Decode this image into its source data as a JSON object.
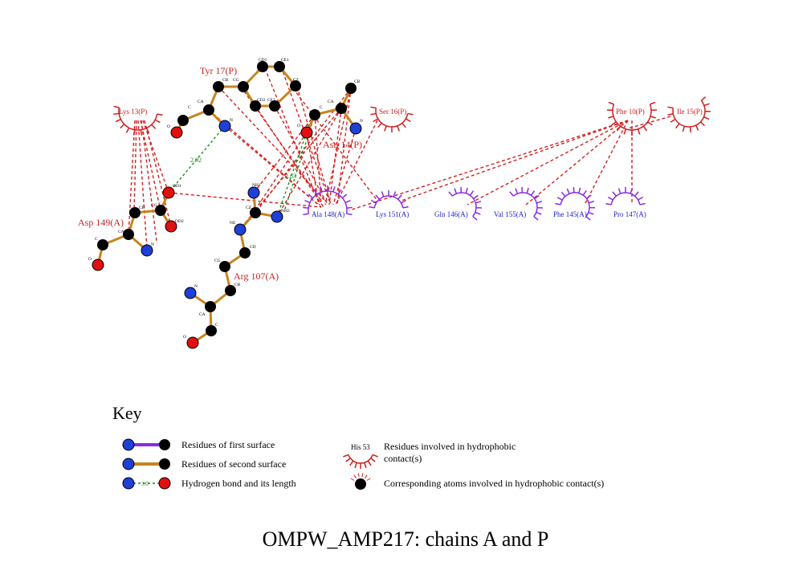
{
  "residues": {
    "tyr17": "Tyr 17(P)",
    "lys13": "Lys 13(P)",
    "ser16": "Ser 16(P)",
    "asn14": "Asn 14(P)",
    "phe10": "Phe 10(P)",
    "ile15": "Ile 15(P)",
    "asp149": "Asp 149(A)",
    "arg107": "Arg 107(A)",
    "ala148": "Ala 148(A)",
    "lys151": "Lys 151(A)",
    "gln146": "Gln 146(A)",
    "val155": "Val 155(A)",
    "phe145": "Phe 145(A)",
    "pro147": "Pro 147(A)"
  },
  "atoms": {
    "tyr_cd1": "CD1",
    "tyr_ce1": "CE1",
    "tyr_cb": "CB",
    "tyr_cg": "CG",
    "tyr_cz": "CZ",
    "tyr_cd2": "CD2",
    "tyr_ce2": "CE2",
    "tyr_ca": "CA",
    "tyr_c": "C",
    "tyr_o": "O",
    "tyr_n": "N",
    "asn_cb": "CB",
    "asn_ca": "CA",
    "asn_c": "C",
    "asn_o": "O",
    "asn_n": "N",
    "asp_od1": "OD1",
    "asp_cg": "CG",
    "asp_od2": "OD2",
    "asp_cb": "CB",
    "asp_ca": "CA",
    "asp_n": "N",
    "asp_c": "C",
    "asp_o": "O",
    "arg_nh1": "NH1",
    "arg_nh2": "NH2",
    "arg_cz": "CZ",
    "arg_ne": "NE",
    "arg_cd": "CD",
    "arg_cg": "CG",
    "arg_cb": "CB",
    "arg_n": "N",
    "arg_ca": "CA",
    "arg_c": "C",
    "arg_o": "O"
  },
  "hbonds": {
    "d1": "2.92",
    "d2": "2.63"
  },
  "key": {
    "title": "Key",
    "first_surface": "Residues of first surface",
    "second_surface": "Residues of second surface",
    "hbond": "Hydrogen bond and its length",
    "hbond_sample": "3.0",
    "his_label": "His 53",
    "hydrophobic_line1": "Residues involved in hydrophobic",
    "hydrophobic_line2": "contact(s)",
    "atoms_hydrophobic": "Corresponding atoms involved in hydrophobic contact(s)"
  },
  "footer_title": "OMPW_AMP217: chains A and P",
  "colors": {
    "bond": "#c8841e",
    "first_surface": "#8a2be2",
    "hydrophobic_red": "#cc1f1f",
    "hydrophobic_blue": "#8a2be2",
    "hbond": "#1a8a1a",
    "carbon": "#000000",
    "nitrogen": "#1f3fd6",
    "oxygen": "#e01010"
  }
}
